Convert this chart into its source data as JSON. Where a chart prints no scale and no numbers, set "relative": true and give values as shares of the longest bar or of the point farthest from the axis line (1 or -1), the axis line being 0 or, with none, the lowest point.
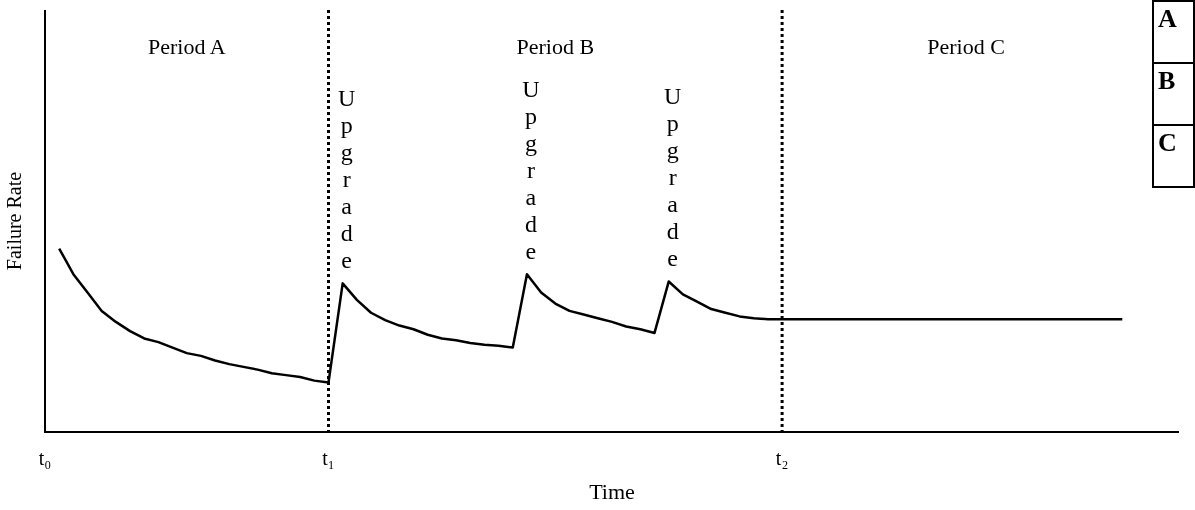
{
  "chart_data": {
    "type": "line",
    "relative": true,
    "xlabel": "Time",
    "ylabel": "Failure Rate",
    "categories": [
      "t₀",
      null,
      null,
      null,
      null,
      null,
      null,
      null,
      null,
      null,
      null,
      null,
      null,
      null,
      null,
      null,
      null,
      null,
      null,
      null,
      "t₁",
      null,
      null,
      null,
      null,
      null,
      null,
      null,
      null,
      null,
      null,
      null,
      null,
      null,
      null,
      null,
      null,
      null,
      null,
      null,
      null,
      null,
      null,
      null,
      null,
      null,
      null,
      null,
      null,
      null,
      null,
      null,
      "t₂",
      null,
      null,
      null,
      null,
      null,
      null,
      null,
      null,
      null,
      null,
      null,
      null,
      null,
      null,
      null,
      null,
      null,
      null,
      null,
      null,
      null,
      null,
      null,
      null,
      null,
      null,
      null,
      null
    ],
    "values": [
      null,
      1.0,
      0.86,
      0.76,
      0.66,
      0.6,
      0.55,
      0.51,
      0.49,
      0.46,
      0.43,
      0.415,
      0.39,
      0.37,
      0.355,
      0.34,
      0.32,
      0.31,
      0.3,
      0.28,
      0.27,
      0.81,
      0.72,
      0.65,
      0.61,
      0.58,
      0.56,
      0.53,
      0.51,
      0.5,
      0.485,
      0.475,
      0.47,
      0.46,
      0.86,
      0.76,
      0.7,
      0.66,
      0.64,
      0.62,
      0.6,
      0.575,
      0.56,
      0.54,
      0.82,
      0.75,
      0.71,
      0.67,
      0.65,
      0.63,
      0.62,
      0.615,
      0.615,
      0.615,
      0.615,
      0.615,
      0.615,
      0.615,
      0.615,
      0.615,
      0.615,
      0.615,
      0.615,
      0.615,
      0.615,
      0.615,
      0.615,
      0.615,
      0.615,
      0.615,
      0.615,
      0.615,
      0.615,
      0.615,
      0.615,
      0.615,
      0.615,
      null,
      null,
      null,
      null
    ],
    "color": "#000000",
    "tick_labels": "x",
    "ref_lines": [
      {
        "axis": "x",
        "value": "t₁",
        "line_style": "dotted",
        "color": "#000000"
      },
      {
        "axis": "x",
        "value": "t₂",
        "line_style": "dotted",
        "color": "#000000"
      }
    ],
    "annotations": [
      "Period A",
      "Period B",
      "Period C",
      "Upgrade",
      "Upgrade",
      "Upgrade",
      "A",
      "B",
      "C"
    ],
    "grid": false,
    "legend": false,
    "marker": "none",
    "line_style": "solid"
  }
}
